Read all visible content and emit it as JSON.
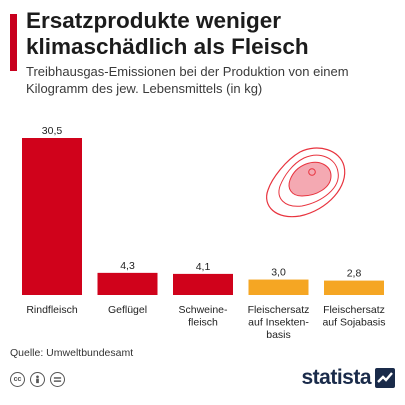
{
  "header": {
    "title": "Ersatzprodukte weniger klimaschädlich als Fleisch",
    "subtitle": "Treibhausgas-Emissionen bei der Produktion von einem Kilogramm des jew. Lebensmittels (in kg)"
  },
  "chart_data": {
    "type": "bar",
    "title": "Ersatzprodukte weniger klimaschädlich als Fleisch",
    "subtitle": "Treibhausgas-Emissionen bei der Produktion von einem Kilogramm des jew. Lebensmittels (in kg)",
    "categories": [
      [
        "Rindfleisch"
      ],
      [
        "Geflügel"
      ],
      [
        "Schweine-",
        "fleisch"
      ],
      [
        "Fleischersatz",
        "auf Insekten-",
        "basis"
      ],
      [
        "Fleischersatz",
        "auf Sojabasis"
      ]
    ],
    "values": [
      30.5,
      4.3,
      4.1,
      3.0,
      2.8
    ],
    "value_labels": [
      "30,5",
      "4,3",
      "4,1",
      "3,0",
      "2,8"
    ],
    "colors": [
      "#d0021b",
      "#d0021b",
      "#d0021b",
      "#f5a623",
      "#f5a623"
    ],
    "ylim": [
      0,
      30.5
    ],
    "grid": false,
    "legend": "none"
  },
  "footer": {
    "source": "Quelle: Umweltbundesamt",
    "icons": [
      "cc-icon",
      "attribution-icon",
      "no-derivatives-icon"
    ],
    "cc_text": "cc",
    "brand": "statista"
  }
}
